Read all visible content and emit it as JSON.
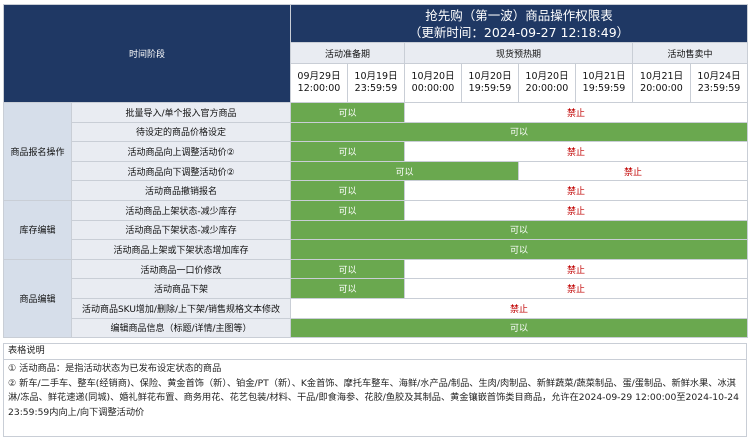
{
  "title_line1": "抢先购（第一波）商品操作权限表",
  "title_line2": "（更新时间：2024-09-27 12:18:49）",
  "time_stage_label": "时间阶段",
  "phases": [
    "活动准备期",
    "现货预热期",
    "活动售卖中"
  ],
  "columns": [
    {
      "date": "09月29日",
      "time": "12:00:00"
    },
    {
      "date": "10月19日",
      "time": "23:59:59"
    },
    {
      "date": "10月20日",
      "time": "00:00:00"
    },
    {
      "date": "10月20日",
      "time": "19:59:59"
    },
    {
      "date": "10月20日",
      "time": "20:00:00"
    },
    {
      "date": "10月21日",
      "time": "19:59:59"
    },
    {
      "date": "10月21日",
      "time": "20:00:00"
    },
    {
      "date": "10月24日",
      "time": "23:59:59"
    }
  ],
  "allow_text": "可以",
  "deny_text": "禁止",
  "categories": [
    {
      "name": "商品报名操作",
      "rows": [
        {
          "label": "批量导入/单个报入官方商品",
          "cells": [
            {
              "span": 2,
              "v": "allow"
            },
            {
              "span": 6,
              "v": "deny"
            }
          ]
        },
        {
          "label": "待设定的商品价格设定",
          "cells": [
            {
              "span": 8,
              "v": "allow"
            }
          ]
        },
        {
          "label": "活动商品向上调整活动价②",
          "cells": [
            {
              "span": 2,
              "v": "allow"
            },
            {
              "span": 6,
              "v": "deny"
            }
          ]
        },
        {
          "label": "活动商品向下调整活动价②",
          "cells": [
            {
              "span": 4,
              "v": "allow"
            },
            {
              "span": 4,
              "v": "deny"
            }
          ]
        },
        {
          "label": "活动商品撤销报名",
          "cells": [
            {
              "span": 2,
              "v": "allow"
            },
            {
              "span": 6,
              "v": "deny"
            }
          ]
        }
      ]
    },
    {
      "name": "库存编辑",
      "rows": [
        {
          "label": "活动商品上架状态-减少库存",
          "cells": [
            {
              "span": 2,
              "v": "allow"
            },
            {
              "span": 6,
              "v": "deny"
            }
          ]
        },
        {
          "label": "活动商品下架状态-减少库存",
          "cells": [
            {
              "span": 8,
              "v": "allow"
            }
          ]
        },
        {
          "label": "活动商品上架或下架状态增加库存",
          "cells": [
            {
              "span": 8,
              "v": "allow"
            }
          ]
        }
      ]
    },
    {
      "name": "商品编辑",
      "rows": [
        {
          "label": "活动商品一口价修改",
          "cells": [
            {
              "span": 2,
              "v": "allow"
            },
            {
              "span": 6,
              "v": "deny"
            }
          ]
        },
        {
          "label": "活动商品下架",
          "cells": [
            {
              "span": 2,
              "v": "allow"
            },
            {
              "span": 6,
              "v": "deny"
            }
          ]
        },
        {
          "label": "活动商品SKU增加/删除/上下架/销售规格文本修改",
          "cells": [
            {
              "span": 8,
              "v": "deny"
            }
          ]
        },
        {
          "label": "编辑商品信息（标题/详情/主图等）",
          "cells": [
            {
              "span": 8,
              "v": "allow"
            }
          ]
        }
      ]
    }
  ],
  "notes_title": "表格说明",
  "notes": [
    "① 活动商品：是指活动状态为已发布设定状态的商品",
    "② 新车/二手车、整车(经销商)、保险、黄金首饰（新）、铂金/PT（新）、K金首饰、摩托车整车、海鲜/水产品/制品、生肉/肉制品、新鲜蔬菜/蔬菜制品、蛋/蛋制品、新鲜水果、冰淇淋/冻品、鲜花速递(同城)、婚礼鲜花布置、商务用花、花艺包装/材料、干品/即食海参、花胶/鱼胶及其制品、黄金镶嵌首饰类目商品，允许在2024-09-29 12:00:00至2024-10-24 23:59:59内向上/向下调整活动价"
  ],
  "colors": {
    "header_navy": "#1f3864",
    "allow_green": "#6aa84f",
    "deny_red": "#c00000"
  }
}
